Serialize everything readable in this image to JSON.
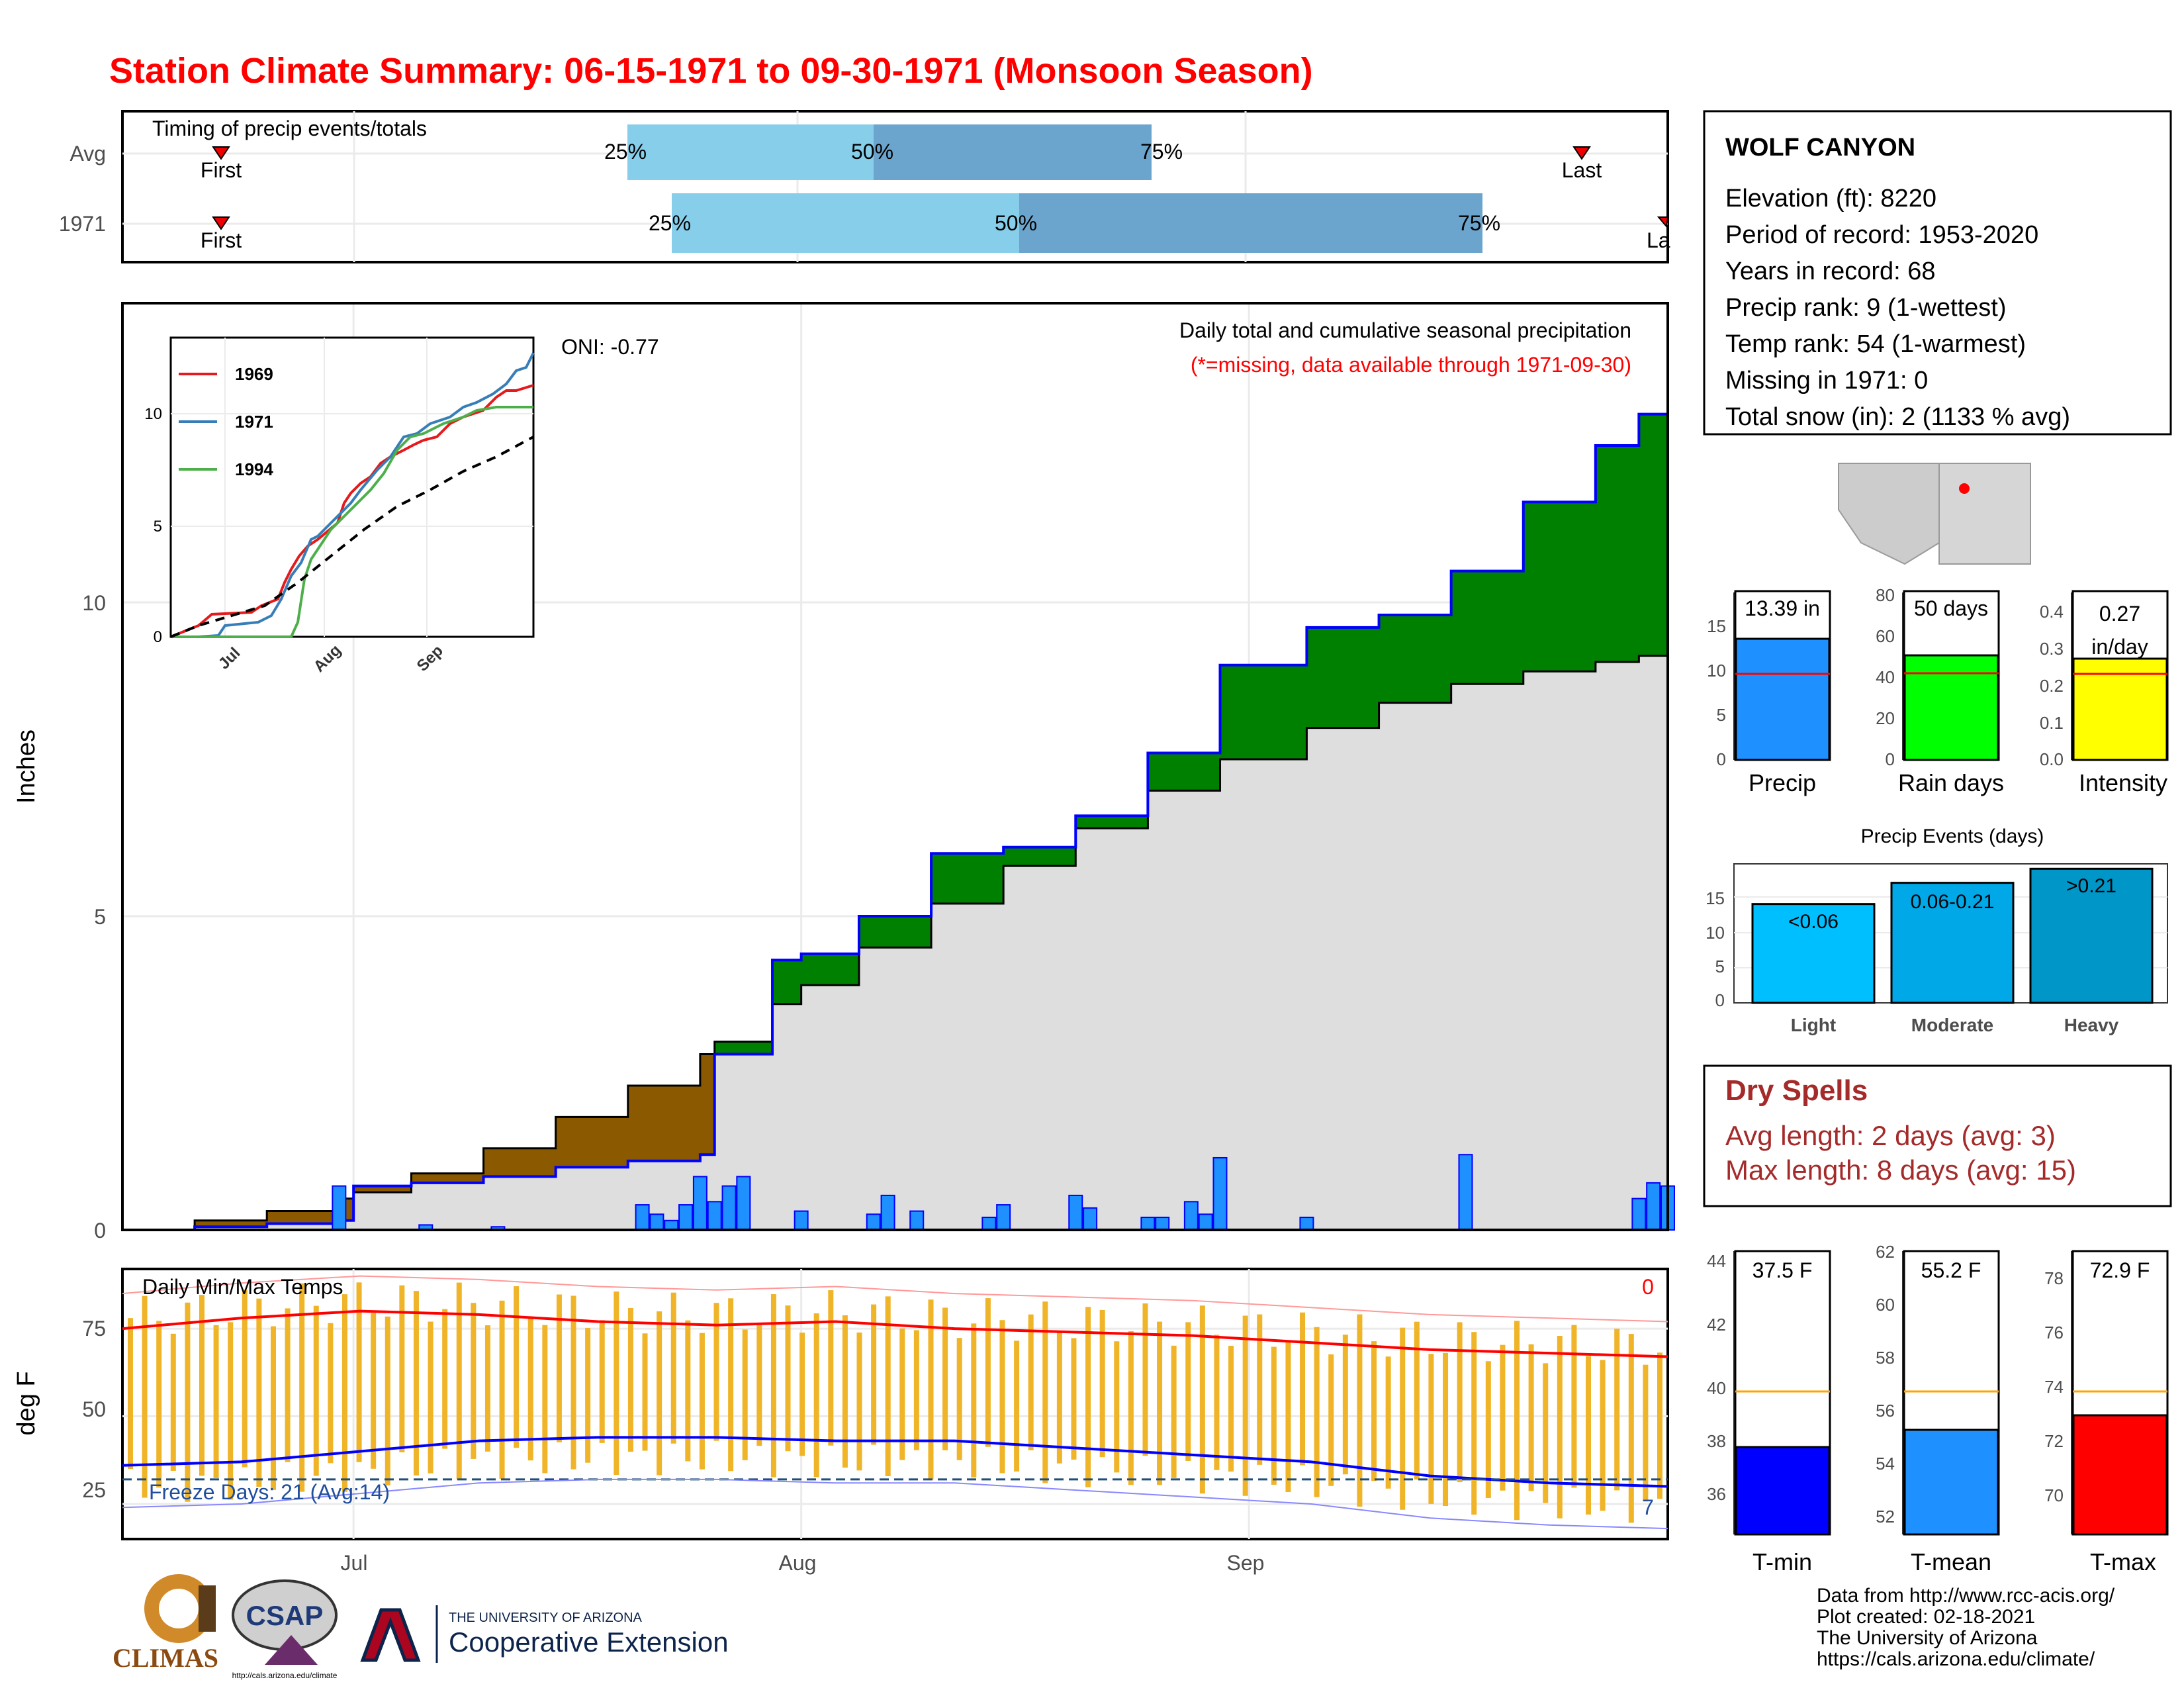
{
  "title": "Station Climate Summary: 06-15-1971 to 09-30-1971 (Monsoon Season)",
  "colors": {
    "title": "#ff0000",
    "precip_line": "#0000ff",
    "cum_green": "#008000",
    "cum_brown": "#8b5a00",
    "avg_gray": "#dedede",
    "bar_blue": "#1e90ff",
    "temp_bar": "#f0b429",
    "tmax": "#ff0000",
    "tmin": "#0000ff",
    "light_blue": "#87ceeb",
    "mid_blue": "#6ba4cc"
  },
  "station": {
    "name": "WOLF CANYON",
    "lines": [
      "Elevation (ft): 8220",
      "Period of record: 1953-2020",
      "Years in record: 68",
      "Precip rank: 9 (1-wettest)",
      "Temp rank: 54 (1-warmest)",
      "Missing in 1971: 0",
      "Total snow (in): 2 (1133 % avg)"
    ]
  },
  "timing": {
    "title": "Timing of precip events/totals",
    "rows": [
      "Avg",
      "1971"
    ],
    "first_label": "First",
    "last_label": "Last",
    "last_clipped": "La",
    "pct_labels": [
      "25%",
      "50%",
      "75%"
    ]
  },
  "precip_panel": {
    "ylabel": "Inches",
    "yticks": [
      "0",
      "5",
      "10"
    ],
    "annotation": "Daily total and cumulative seasonal precipitation",
    "missing_note": "(*=missing, data available through 1971-09-30)",
    "oni": "ONI: -0.77",
    "inset_legend": [
      "1969",
      "1971",
      "1994"
    ],
    "inset_yticks": [
      "0",
      "5",
      "10"
    ],
    "inset_xticks": [
      "Jul",
      "Aug",
      "Sep"
    ]
  },
  "temp_panel": {
    "title": "Daily Min/Max Temps",
    "ylabel": "deg F",
    "yticks": [
      "25",
      "50",
      "75"
    ],
    "xticks": [
      "Jul",
      "Aug",
      "Sep"
    ],
    "freeze_text": "Freeze Days: 21 (Avg:14)",
    "top_right": "0",
    "bottom_right": "7"
  },
  "bar_cards": {
    "precip": {
      "label": "Precip",
      "value": "13.39 in",
      "yticks": [
        "0",
        "5",
        "10",
        "15"
      ]
    },
    "raindays": {
      "label": "Rain days",
      "value": "50 days",
      "yticks": [
        "0",
        "20",
        "40",
        "60",
        "80"
      ]
    },
    "intensity": {
      "label": "Intensity",
      "value_line1": "0.27",
      "value_line2": "in/day",
      "yticks": [
        "0.0",
        "0.1",
        "0.2",
        "0.3",
        "0.4"
      ]
    }
  },
  "events": {
    "title": "Precip Events (days)",
    "categories": [
      "Light",
      "Moderate",
      "Heavy"
    ],
    "bar_labels": [
      "<0.06",
      "0.06-0.21",
      ">0.21"
    ],
    "yticks": [
      "0",
      "5",
      "10",
      "15"
    ]
  },
  "dry_spells": {
    "title": "Dry Spells",
    "avg_line": "Avg length: 2 days (avg: 3)",
    "max_line": "Max length: 8 days (avg: 15)"
  },
  "temp_cards": {
    "tmin": {
      "label": "T-min",
      "value": "37.5 F",
      "yticks": [
        "36",
        "38",
        "40",
        "42",
        "44"
      ]
    },
    "tmean": {
      "label": "T-mean",
      "value": "55.2 F",
      "yticks": [
        "52",
        "54",
        "56",
        "58",
        "60",
        "62"
      ]
    },
    "tmax": {
      "label": "T-max",
      "value": "72.9 F",
      "yticks": [
        "70",
        "72",
        "74",
        "76",
        "78"
      ]
    }
  },
  "footer": {
    "lines": [
      "Data from http://www.rcc-acis.org/",
      "Plot created: 02-18-2021",
      "The University of Arizona",
      "https://cals.arizona.edu/climate/"
    ],
    "logo_climas": "CLIMAS",
    "logo_csap": "CSAP",
    "logo_csap_url": "http://cals.arizona.edu/climate",
    "ua_small": "THE UNIVERSITY OF ARIZONA",
    "ua_big": "Cooperative Extension"
  },
  "chart_data": [
    {
      "type": "area",
      "name": "cumulative precipitation",
      "x": [
        "06-15",
        "06-20",
        "06-25",
        "06-30",
        "07-01",
        "07-05",
        "07-10",
        "07-15",
        "07-20",
        "07-25",
        "07-26",
        "07-30",
        "08-01",
        "08-05",
        "08-10",
        "08-15",
        "08-20",
        "08-25",
        "08-30",
        "09-05",
        "09-10",
        "09-15",
        "09-20",
        "09-25",
        "09-28",
        "09-30"
      ],
      "series": [
        {
          "name": "1971",
          "values": [
            0.0,
            0.05,
            0.1,
            0.15,
            0.7,
            0.75,
            0.85,
            1.0,
            1.1,
            1.2,
            2.8,
            4.3,
            4.4,
            5.0,
            6.0,
            6.1,
            6.6,
            7.6,
            9.0,
            9.6,
            9.8,
            10.5,
            11.6,
            12.5,
            13.0,
            13.39
          ]
        },
        {
          "name": "Average",
          "values": [
            0.0,
            0.15,
            0.3,
            0.5,
            0.6,
            0.9,
            1.3,
            1.8,
            2.3,
            2.8,
            3.0,
            3.6,
            3.9,
            4.5,
            5.2,
            5.8,
            6.4,
            7.0,
            7.5,
            8.0,
            8.4,
            8.7,
            8.9,
            9.05,
            9.15,
            9.2
          ]
        }
      ],
      "ylim": [
        0,
        14.5
      ]
    },
    {
      "type": "bar",
      "name": "daily precipitation",
      "x": [
        "06-30",
        "07-06",
        "07-11",
        "07-21",
        "07-22",
        "07-23",
        "07-24",
        "07-25",
        "07-26",
        "07-27",
        "07-28",
        "08-01",
        "08-06",
        "08-07",
        "08-09",
        "08-14",
        "08-15",
        "08-20",
        "08-21",
        "08-25",
        "08-26",
        "08-28",
        "08-29",
        "08-30",
        "09-05",
        "09-16",
        "09-28",
        "09-29",
        "09-30"
      ],
      "values": [
        0.7,
        0.08,
        0.05,
        0.4,
        0.25,
        0.15,
        0.4,
        0.85,
        0.45,
        0.7,
        0.85,
        0.3,
        0.25,
        0.55,
        0.3,
        0.2,
        0.4,
        0.55,
        0.35,
        0.2,
        0.2,
        0.45,
        0.25,
        1.15,
        0.2,
        1.2,
        0.5,
        0.75,
        0.7
      ]
    },
    {
      "type": "line",
      "name": "daily temperature",
      "ylabel": "deg F",
      "series": [
        {
          "name": "avg max",
          "values": [
            75,
            78,
            80,
            79,
            77,
            76,
            77,
            75,
            74,
            73,
            71,
            69,
            68,
            67
          ]
        },
        {
          "name": "avg min",
          "values": [
            36,
            37,
            40,
            43,
            44,
            44,
            43,
            43,
            41,
            39,
            37,
            33,
            31,
            30
          ]
        },
        {
          "name": "freeze",
          "values": [
            32,
            32,
            32,
            32,
            32,
            32,
            32,
            32,
            32,
            32,
            32,
            32,
            32,
            32
          ]
        }
      ],
      "ylim": [
        15,
        92
      ]
    },
    {
      "type": "bar",
      "name": "precip events",
      "categories": [
        "Light",
        "Moderate",
        "Heavy"
      ],
      "values": [
        14,
        17,
        19
      ]
    }
  ]
}
